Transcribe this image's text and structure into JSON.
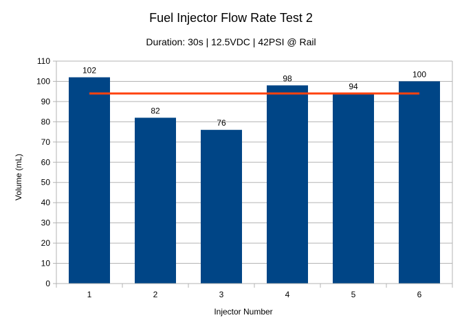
{
  "chart_data": {
    "type": "bar",
    "title": "Fuel Injector Flow Rate Test 2",
    "subtitle": "Duration: 30s | 12.5VDC | 42PSI @ Rail",
    "xlabel": "Injector Number",
    "ylabel": "Volume (mL)",
    "categories": [
      "1",
      "2",
      "3",
      "4",
      "5",
      "6"
    ],
    "values": [
      102,
      82,
      76,
      98,
      94,
      100
    ],
    "data_labels": [
      "102",
      "82",
      "76",
      "98",
      "94",
      "100"
    ],
    "ylim": [
      0,
      110
    ],
    "yticks": [
      0,
      10,
      20,
      30,
      40,
      50,
      60,
      70,
      80,
      90,
      100,
      110
    ],
    "grid": true,
    "legend": "none",
    "reference_line": {
      "value": 94,
      "color": "#ff420e"
    },
    "colors": {
      "bar": "#004586",
      "grid": "#b3b3b3",
      "axis": "#b3b3b3"
    }
  }
}
